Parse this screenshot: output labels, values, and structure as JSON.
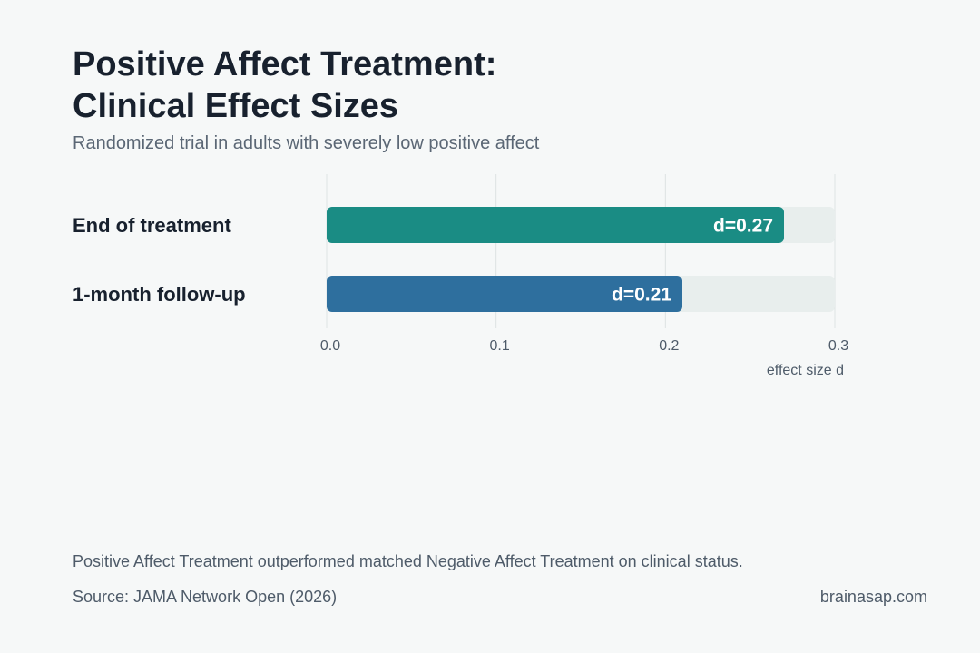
{
  "header": {
    "title_line1": "Positive Affect Treatment:",
    "title_line2": "Clinical Effect Sizes",
    "subtitle": "Randomized trial in adults with severely low positive affect"
  },
  "chart_data": {
    "type": "bar",
    "orientation": "horizontal",
    "categories": [
      "End of treatment",
      "1-month follow-up"
    ],
    "values": [
      0.27,
      0.21
    ],
    "data_labels": [
      "d=0.27",
      "d=0.21"
    ],
    "colors": [
      "#1a8c84",
      "#2e6f9e"
    ],
    "track_color": "#e8eeed",
    "xlim": [
      0,
      0.3
    ],
    "x_ticks": [
      0.0,
      0.1,
      0.2,
      0.3
    ],
    "x_tick_labels": [
      "0.0",
      "0.1",
      "0.2",
      "0.3"
    ],
    "xlabel": "effect size d",
    "grid": true
  },
  "footer": {
    "note": "Positive Affect Treatment outperformed matched Negative Affect Treatment on clinical status.",
    "source": "Source: JAMA Network Open (2026)",
    "brand": "brainasap.com"
  }
}
